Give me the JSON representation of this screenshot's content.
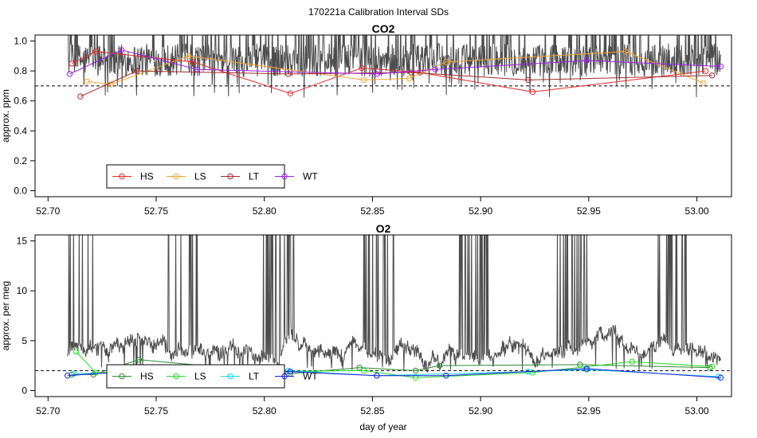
{
  "figure_title": "170221a   Calibration Interval SDs",
  "chart_data": [
    {
      "type": "line",
      "title": "CO2",
      "xlabel": "",
      "ylabel": "approx. ppm",
      "xlim": [
        52.694,
        53.016
      ],
      "ylim": [
        -0.04,
        1.04
      ],
      "x_ticks": [
        "52.70",
        "52.75",
        "52.80",
        "52.85",
        "52.90",
        "52.95",
        "53.00"
      ],
      "y_ticks": [
        "0.0",
        "0.2",
        "0.4",
        "0.6",
        "0.8",
        "1.0"
      ],
      "reference_line": 0.7,
      "legend_position": "bottom-left",
      "background_trace": {
        "color": "#4d4d4d",
        "x_start": 52.709,
        "x_end": 53.011,
        "base_level": 0.84,
        "dip_levels": [
          0.62,
          0.78
        ]
      },
      "series": [
        {
          "name": "HS",
          "color": "#e8282b",
          "marker": "circle",
          "x": [
            52.711,
            52.722,
            52.767,
            52.812,
            52.845,
            52.872,
            52.924,
            53.004
          ],
          "y": [
            0.85,
            0.93,
            0.86,
            0.65,
            0.82,
            0.79,
            0.66,
            0.8
          ]
        },
        {
          "name": "LS",
          "color": "#f2a531",
          "marker": "circle",
          "x": [
            52.718,
            52.729,
            52.765,
            52.846,
            52.867,
            52.884,
            52.967,
            53.003
          ],
          "y": [
            0.73,
            0.71,
            0.9,
            0.74,
            0.75,
            0.86,
            0.93,
            0.72
          ]
        },
        {
          "name": "LT",
          "color": "#a52a2a",
          "marker": "circle",
          "x": [
            52.715,
            52.741,
            52.811,
            52.868,
            52.922,
            53.007
          ],
          "y": [
            0.63,
            0.8,
            0.78,
            0.79,
            0.74,
            0.77
          ]
        },
        {
          "name": "WT",
          "color": "#a020f0",
          "marker": "circle",
          "x": [
            52.71,
            52.734,
            52.769,
            52.852,
            52.879,
            52.949,
            53.011
          ],
          "y": [
            0.78,
            0.94,
            0.81,
            0.78,
            0.81,
            0.87,
            0.83
          ]
        }
      ]
    },
    {
      "type": "line",
      "title": "O2",
      "xlabel": "day of year",
      "ylabel": "approx. per meg",
      "xlim": [
        52.694,
        53.016
      ],
      "ylim": [
        -0.6,
        15.6
      ],
      "x_ticks": [
        "52.70",
        "52.75",
        "52.80",
        "52.85",
        "52.90",
        "52.95",
        "53.00"
      ],
      "y_ticks": [
        "0",
        "5",
        "10",
        "15"
      ],
      "reference_line": 2.0,
      "legend_position": "bottom-left",
      "background_trace": {
        "color": "#4d4d4d",
        "x_start": 52.709,
        "x_end": 53.011,
        "base_level": 4.0,
        "dip_levels": [
          1.2,
          2.0
        ]
      },
      "series": [
        {
          "name": "HS",
          "color": "#2e8b2e",
          "marker": "circle",
          "x": [
            52.711,
            52.721,
            52.742,
            52.812,
            52.844,
            52.87,
            52.881,
            52.946,
            53.006
          ],
          "y": [
            1.6,
            1.6,
            3.1,
            1.7,
            2.3,
            2.0,
            2.5,
            2.6,
            2.3
          ]
        },
        {
          "name": "LS",
          "color": "#22dd22",
          "marker": "circle",
          "x": [
            52.713,
            52.722,
            52.846,
            52.87,
            52.924,
            52.97,
            53.007
          ],
          "y": [
            3.9,
            1.8,
            2.0,
            1.3,
            1.8,
            2.9,
            2.4
          ]
        },
        {
          "name": "LT",
          "color": "#11d5e6",
          "marker": "circle",
          "x": [
            52.712,
            52.744,
            52.811,
            52.852,
            52.922,
            52.949,
            53.01
          ],
          "y": [
            1.7,
            1.8,
            2.0,
            1.5,
            1.9,
            2.1,
            1.4
          ]
        },
        {
          "name": "WT",
          "color": "#1a1adb",
          "marker": "circle",
          "x": [
            52.709,
            52.742,
            52.812,
            52.852,
            52.884,
            52.949,
            53.011
          ],
          "y": [
            1.5,
            2.0,
            1.9,
            1.5,
            1.5,
            2.2,
            1.3
          ]
        }
      ]
    }
  ]
}
